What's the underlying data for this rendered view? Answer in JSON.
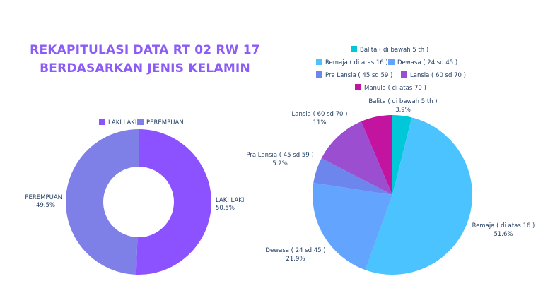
{
  "title": {
    "line1": "REKAPITULASI DATA RT 02 RW 17",
    "line2": "BERDASARKAN JENIS KELAMIN"
  },
  "chart_data": [
    {
      "type": "pie",
      "variant": "donut",
      "legend_position": "top",
      "slices": [
        {
          "label": "LAKI LAKI",
          "value": 50.5,
          "pct_label": "50.5%",
          "color": "#8c52ff"
        },
        {
          "label": "PEREMPUAN",
          "value": 49.5,
          "pct_label": "49.5%",
          "color": "#7f7fe8"
        }
      ]
    },
    {
      "type": "pie",
      "legend_position": "top",
      "slices": [
        {
          "label": "Balita ( di bawah 5 th )",
          "value": 3.9,
          "pct_label": "3.9%",
          "color": "#00c8d8"
        },
        {
          "label": "Remaja ( di atas 16 )",
          "value": 51.6,
          "pct_label": "51.6%",
          "color": "#4bc3ff"
        },
        {
          "label": "Dewasa ( 24 sd 45 )",
          "value": 21.9,
          "pct_label": "21.9%",
          "color": "#63a4ff"
        },
        {
          "label": "Pra Lansia ( 45 sd 59 )",
          "value": 5.2,
          "pct_label": "5.2%",
          "color": "#6c86ee"
        },
        {
          "label": "Lansia ( 60 sd 70 )",
          "value": 11,
          "pct_label": "11%",
          "color": "#9b4fd0"
        },
        {
          "label": "Manula ( di atas 70 )",
          "value": 6.4,
          "pct_label": "",
          "color": "#c2149e"
        }
      ]
    }
  ]
}
